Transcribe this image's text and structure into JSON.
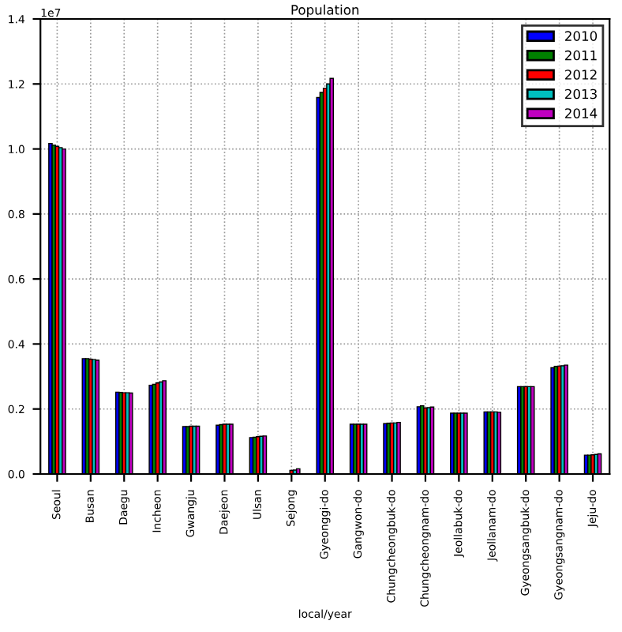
{
  "chart_data": {
    "type": "bar",
    "title": "Population",
    "xlabel": "local/year",
    "annotations": [
      "1e7"
    ],
    "categories": [
      "Seoul",
      "Busan",
      "Daegu",
      "Incheon",
      "Gwangju",
      "Daejeon",
      "Ulsan",
      "Sejong",
      "Gyeonggi-do",
      "Gangwon-do",
      "Chungcheongbuk-do",
      "Chungcheongnam-do",
      "Jeollabuk-do",
      "Jeollanam-do",
      "Gyeongsangbuk-do",
      "Gyeongsangnam-do",
      "Jeju-do"
    ],
    "series": [
      {
        "name": "2010",
        "color": "#0000ff",
        "values": [
          1.017,
          0.355,
          0.252,
          0.273,
          0.146,
          0.15,
          0.112,
          null,
          1.158,
          0.153,
          0.155,
          0.207,
          0.187,
          0.191,
          0.269,
          0.327,
          0.058
        ]
      },
      {
        "name": "2011",
        "color": "#008000",
        "values": [
          1.012,
          0.355,
          0.251,
          0.276,
          0.146,
          0.152,
          0.113,
          null,
          1.174,
          0.153,
          0.156,
          0.21,
          0.187,
          0.191,
          0.269,
          0.331,
          0.058
        ]
      },
      {
        "name": "2012",
        "color": "#ff0000",
        "values": [
          1.008,
          0.353,
          0.25,
          0.28,
          0.147,
          0.153,
          0.115,
          0.011,
          1.187,
          0.153,
          0.157,
          0.203,
          0.187,
          0.191,
          0.269,
          0.332,
          0.059
        ]
      },
      {
        "name": "2013",
        "color": "#00bfbf",
        "values": [
          1.004,
          0.352,
          0.25,
          0.283,
          0.147,
          0.153,
          0.116,
          0.012,
          1.2,
          0.153,
          0.157,
          0.204,
          0.187,
          0.191,
          0.269,
          0.333,
          0.06
        ]
      },
      {
        "name": "2014",
        "color": "#bf00bf",
        "values": [
          1.0,
          0.35,
          0.249,
          0.287,
          0.147,
          0.153,
          0.117,
          0.016,
          1.217,
          0.153,
          0.159,
          0.206,
          0.187,
          0.19,
          0.269,
          0.335,
          0.062
        ]
      }
    ],
    "ylim": [
      0.0,
      1.4
    ],
    "yticks": [
      {
        "value": 0,
        "label": "0.0"
      },
      0.2,
      0.4,
      0.6,
      0.8,
      {
        "value": 1,
        "label": "1.0"
      },
      1.2,
      1.4
    ],
    "grid": true,
    "legend": "top right"
  }
}
